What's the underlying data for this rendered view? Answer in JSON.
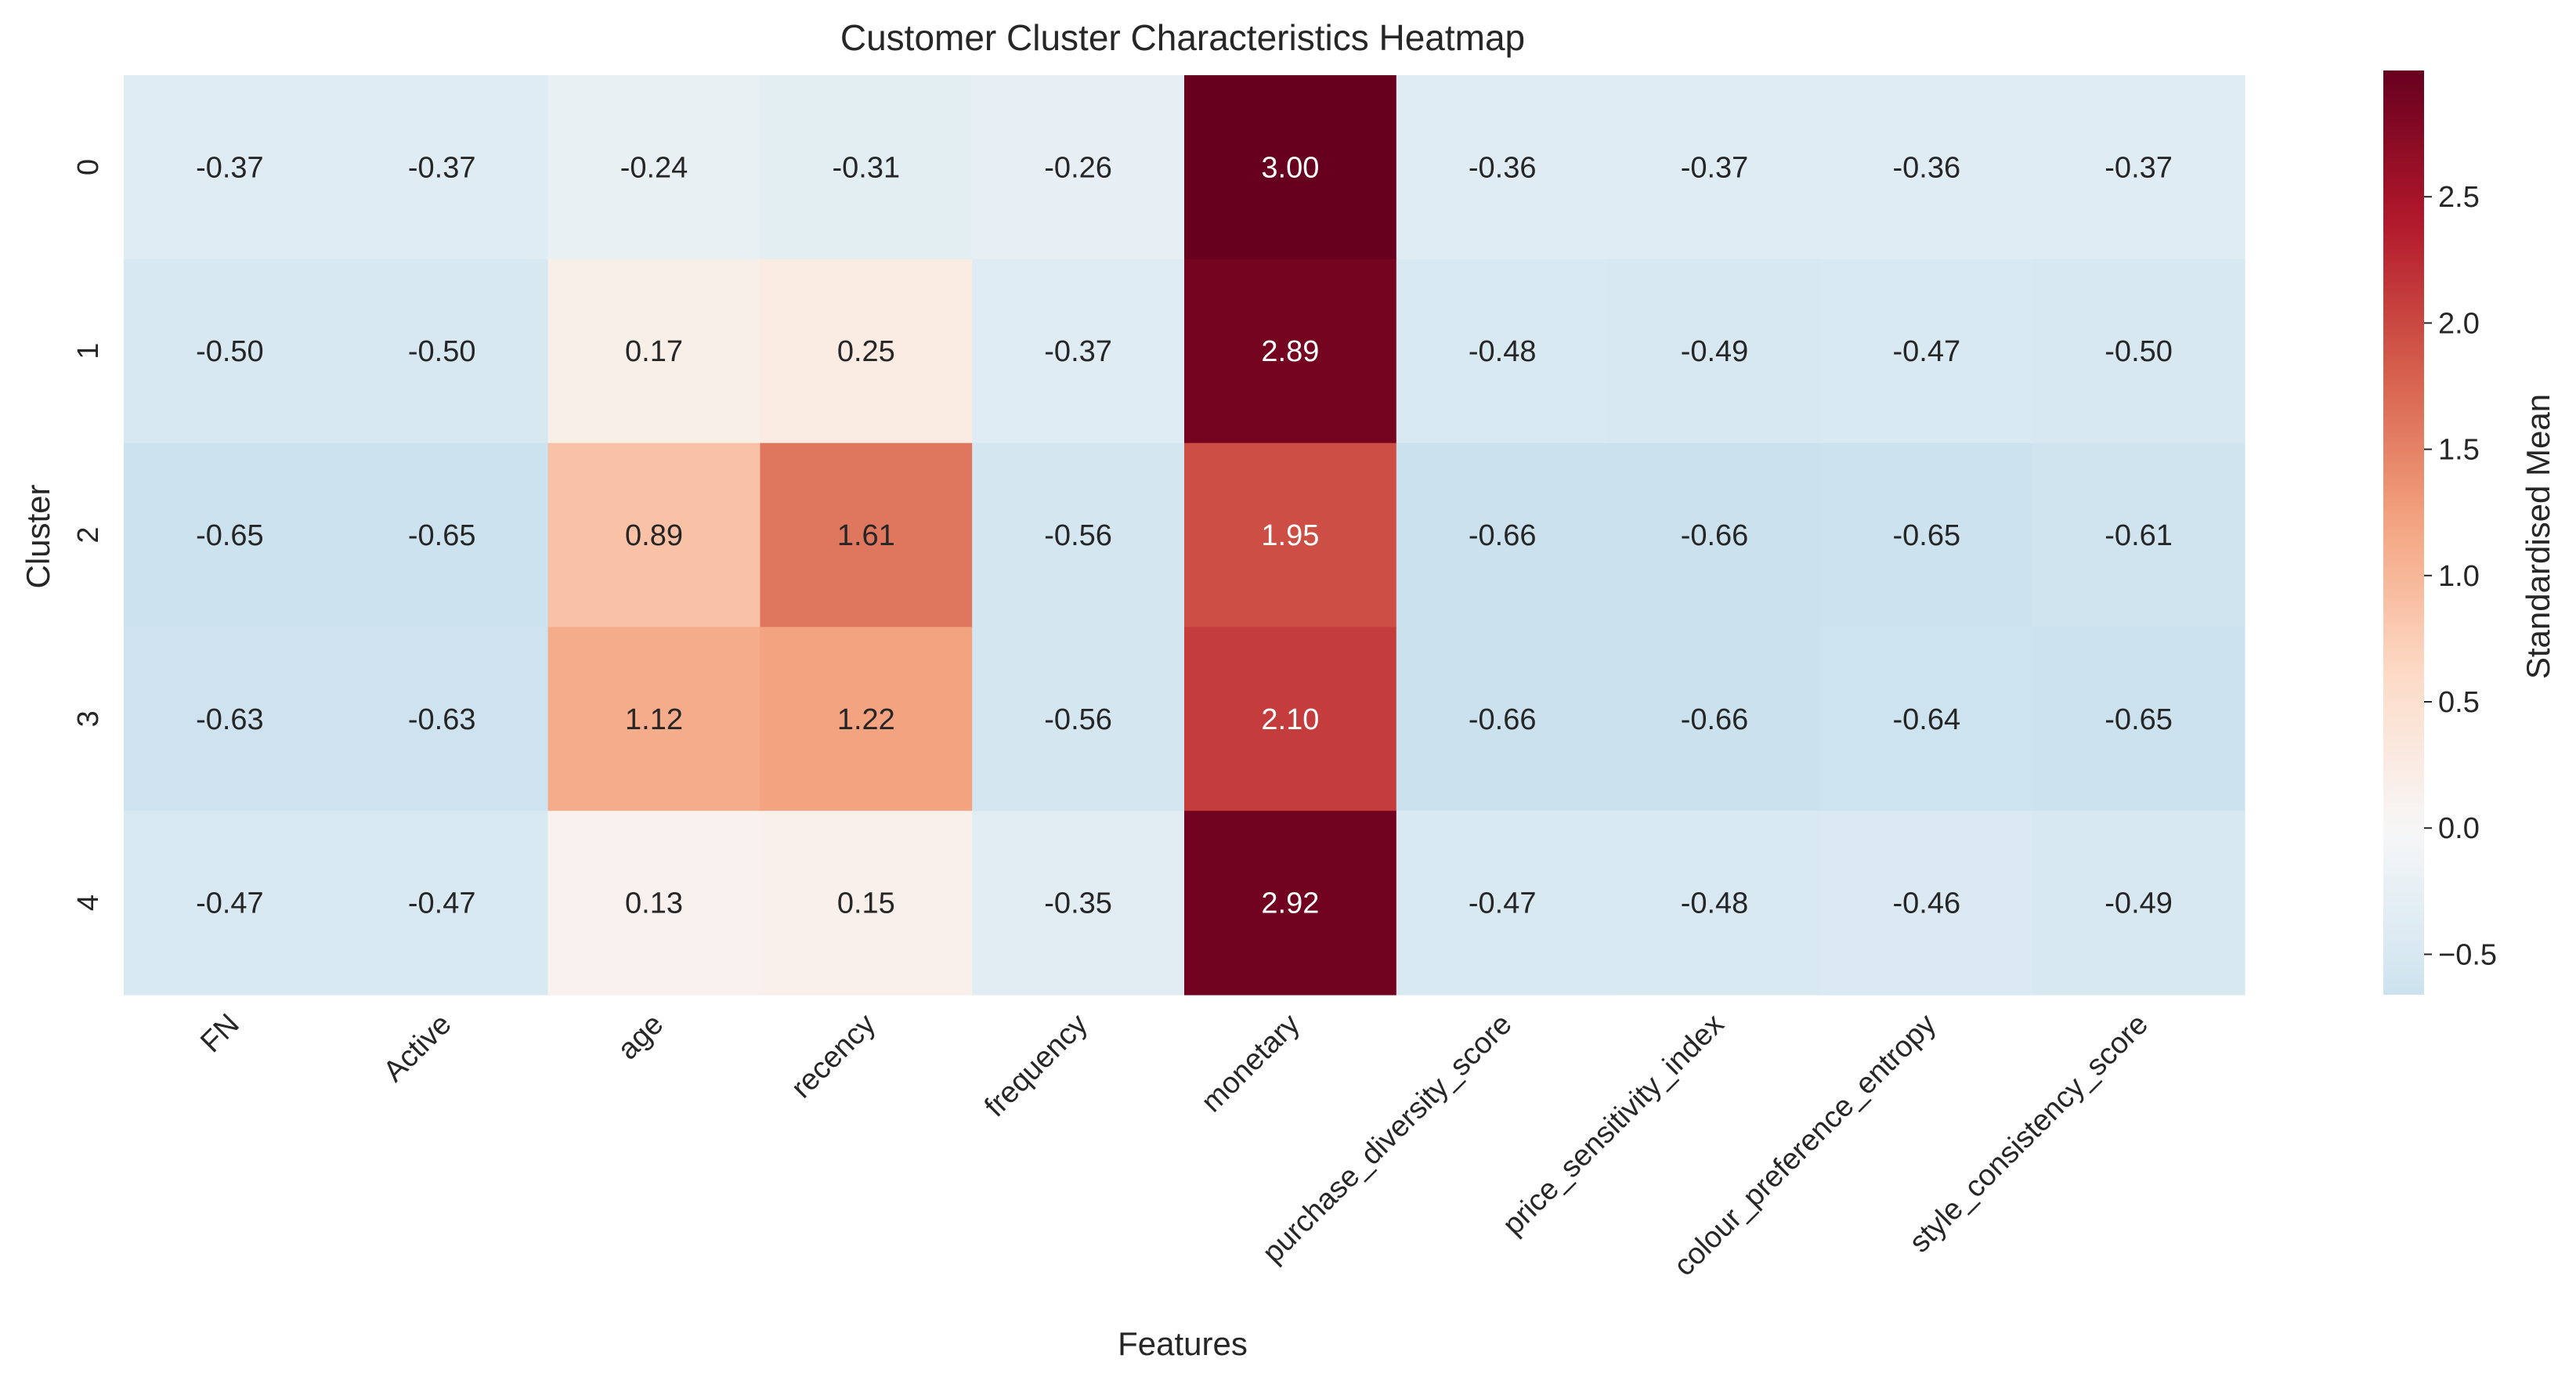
{
  "chart_data": {
    "type": "heatmap",
    "title": "Customer Cluster Characteristics Heatmap",
    "xlabel": "Features",
    "ylabel": "Cluster",
    "x_categories": [
      "FN",
      "Active",
      "age",
      "recency",
      "frequency",
      "monetary",
      "purchase_diversity_score",
      "price_sensitivity_index",
      "colour_preference_entropy",
      "style_consistency_score"
    ],
    "y_categories": [
      "0",
      "1",
      "2",
      "3",
      "4"
    ],
    "values": [
      [
        -0.37,
        -0.37,
        -0.24,
        -0.31,
        -0.26,
        3.0,
        -0.36,
        -0.37,
        -0.36,
        -0.37
      ],
      [
        -0.5,
        -0.5,
        0.17,
        0.25,
        -0.37,
        2.89,
        -0.48,
        -0.49,
        -0.47,
        -0.5
      ],
      [
        -0.65,
        -0.65,
        0.89,
        1.61,
        -0.56,
        1.95,
        -0.66,
        -0.66,
        -0.65,
        -0.61
      ],
      [
        -0.63,
        -0.63,
        1.12,
        1.22,
        -0.56,
        2.1,
        -0.66,
        -0.66,
        -0.64,
        -0.65
      ],
      [
        -0.47,
        -0.47,
        0.13,
        0.15,
        -0.35,
        2.92,
        -0.47,
        -0.48,
        -0.46,
        -0.49
      ]
    ],
    "value_format": "2f",
    "colormap": "RdBu_r",
    "color_center": 0.0,
    "colorbar": {
      "label": "Standardised Mean",
      "ticks": [
        2.5,
        2.0,
        1.5,
        1.0,
        0.5,
        0.0,
        -0.5
      ],
      "tick_labels": [
        "2.5",
        "2.0",
        "1.5",
        "1.0",
        "0.5",
        "0.0",
        "−0.5"
      ],
      "range": [
        -0.66,
        3.0
      ]
    },
    "grid": false
  }
}
